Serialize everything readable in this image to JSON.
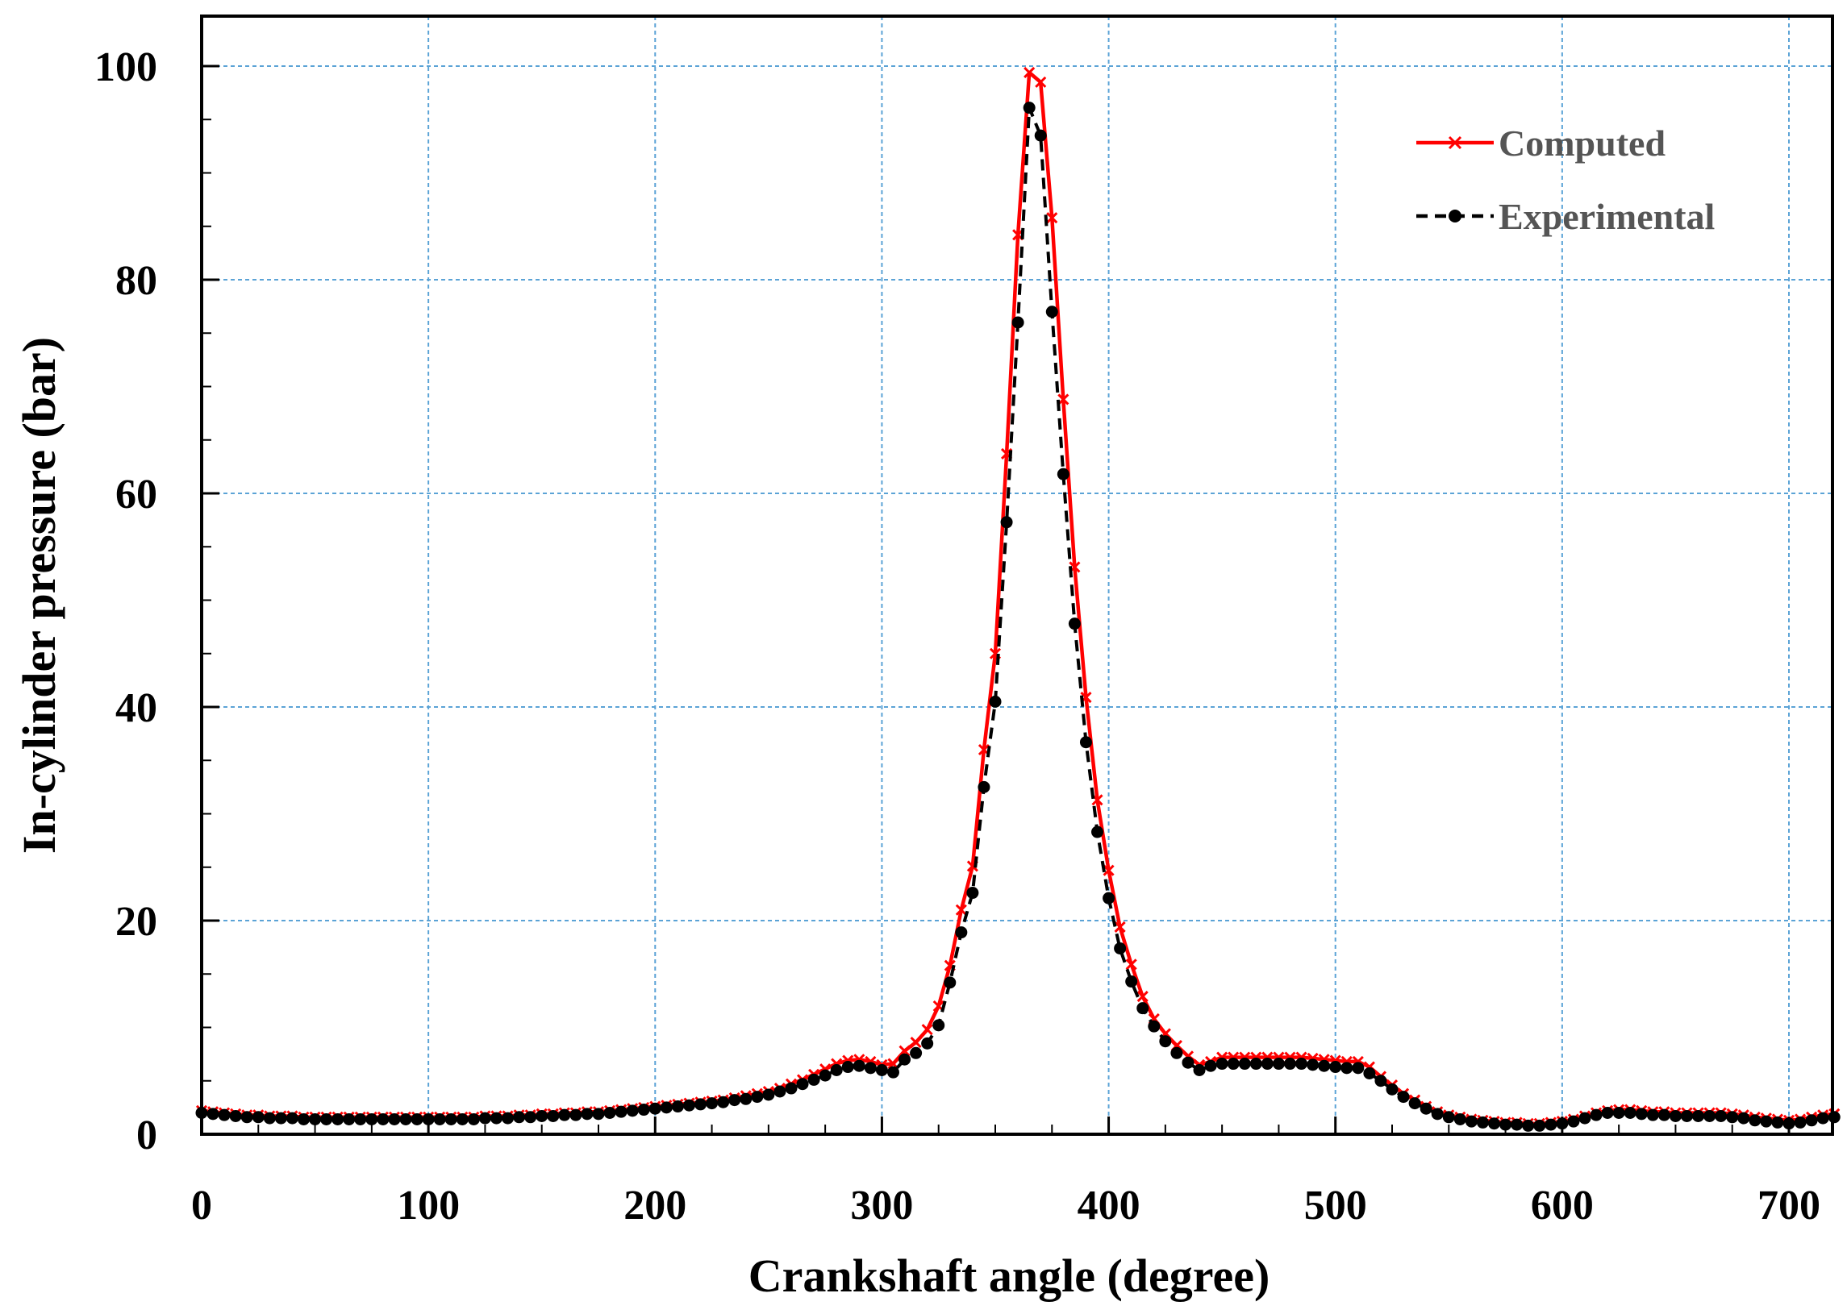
{
  "chart_data": {
    "type": "line",
    "title": "",
    "xlabel": "Crankshaft angle (degree)",
    "ylabel": "In-cylinder pressure (bar)",
    "xlim": [
      0,
      720
    ],
    "ylim": [
      0,
      100
    ],
    "x_ticks": [
      0,
      100,
      200,
      300,
      400,
      500,
      600,
      700
    ],
    "y_ticks": [
      0,
      20,
      40,
      60,
      80,
      100
    ],
    "grid": true,
    "legend_position": "top-right",
    "series": [
      {
        "name": "Computed",
        "color": "#ff0000",
        "marker": "x",
        "line_style": "solid",
        "x": [
          0,
          5,
          10,
          15,
          20,
          25,
          30,
          35,
          40,
          45,
          50,
          55,
          60,
          65,
          70,
          75,
          80,
          85,
          90,
          95,
          100,
          105,
          110,
          115,
          120,
          125,
          130,
          135,
          140,
          145,
          150,
          155,
          160,
          165,
          170,
          175,
          180,
          185,
          190,
          195,
          200,
          205,
          210,
          215,
          220,
          225,
          230,
          235,
          240,
          245,
          250,
          255,
          260,
          265,
          270,
          275,
          280,
          285,
          290,
          295,
          300,
          305,
          310,
          315,
          320,
          325,
          330,
          335,
          340,
          345,
          350,
          355,
          360,
          365,
          370,
          375,
          380,
          385,
          390,
          395,
          400,
          405,
          410,
          415,
          420,
          425,
          430,
          435,
          440,
          445,
          450,
          455,
          460,
          465,
          470,
          475,
          480,
          485,
          490,
          495,
          500,
          505,
          510,
          515,
          520,
          525,
          530,
          535,
          540,
          545,
          550,
          555,
          560,
          565,
          570,
          575,
          580,
          585,
          590,
          595,
          600,
          605,
          610,
          615,
          620,
          625,
          630,
          635,
          640,
          645,
          650,
          655,
          660,
          665,
          670,
          675,
          680,
          685,
          690,
          695,
          700,
          705,
          710,
          715,
          720
        ],
        "y": [
          2.2,
          2.1,
          2.0,
          1.9,
          1.8,
          1.8,
          1.7,
          1.7,
          1.7,
          1.6,
          1.6,
          1.6,
          1.6,
          1.6,
          1.6,
          1.6,
          1.6,
          1.6,
          1.6,
          1.6,
          1.6,
          1.6,
          1.6,
          1.6,
          1.6,
          1.7,
          1.7,
          1.7,
          1.8,
          1.8,
          1.9,
          1.9,
          2.0,
          2.0,
          2.1,
          2.1,
          2.2,
          2.3,
          2.4,
          2.5,
          2.6,
          2.7,
          2.8,
          2.9,
          3.0,
          3.1,
          3.2,
          3.4,
          3.6,
          3.8,
          4.0,
          4.3,
          4.7,
          5.1,
          5.6,
          6.1,
          6.6,
          6.9,
          7.0,
          6.8,
          6.5,
          6.6,
          7.8,
          8.6,
          9.8,
          12.0,
          15.8,
          21.0,
          25.1,
          36.0,
          45.0,
          63.7,
          84.2,
          99.4,
          98.5,
          85.8,
          68.8,
          53.1,
          40.9,
          31.3,
          24.7,
          19.4,
          15.9,
          12.9,
          10.8,
          9.4,
          8.3,
          7.3,
          6.5,
          6.8,
          7.2,
          7.2,
          7.2,
          7.2,
          7.2,
          7.2,
          7.2,
          7.2,
          7.1,
          7.0,
          6.9,
          6.8,
          6.8,
          6.3,
          5.4,
          4.6,
          3.8,
          3.2,
          2.6,
          2.1,
          1.8,
          1.6,
          1.4,
          1.3,
          1.2,
          1.1,
          1.1,
          1.0,
          1.0,
          1.1,
          1.2,
          1.4,
          1.7,
          2.0,
          2.2,
          2.3,
          2.3,
          2.2,
          2.1,
          2.1,
          2.0,
          2.0,
          2.0,
          2.0,
          2.0,
          1.9,
          1.8,
          1.6,
          1.5,
          1.4,
          1.3,
          1.4,
          1.6,
          1.8,
          1.9
        ]
      },
      {
        "name": "Experimental",
        "color": "#000000",
        "marker": "circle",
        "line_style": "dashed",
        "x": [
          0,
          5,
          10,
          15,
          20,
          25,
          30,
          35,
          40,
          45,
          50,
          55,
          60,
          65,
          70,
          75,
          80,
          85,
          90,
          95,
          100,
          105,
          110,
          115,
          120,
          125,
          130,
          135,
          140,
          145,
          150,
          155,
          160,
          165,
          170,
          175,
          180,
          185,
          190,
          195,
          200,
          205,
          210,
          215,
          220,
          225,
          230,
          235,
          240,
          245,
          250,
          255,
          260,
          265,
          270,
          275,
          280,
          285,
          290,
          295,
          300,
          305,
          310,
          315,
          320,
          325,
          330,
          335,
          340,
          345,
          350,
          355,
          360,
          365,
          370,
          375,
          380,
          385,
          390,
          395,
          400,
          405,
          410,
          415,
          420,
          425,
          430,
          435,
          440,
          445,
          450,
          455,
          460,
          465,
          470,
          475,
          480,
          485,
          490,
          495,
          500,
          505,
          510,
          515,
          520,
          525,
          530,
          535,
          540,
          545,
          550,
          555,
          560,
          565,
          570,
          575,
          580,
          585,
          590,
          595,
          600,
          605,
          610,
          615,
          620,
          625,
          630,
          635,
          640,
          645,
          650,
          655,
          660,
          665,
          670,
          675,
          680,
          685,
          690,
          695,
          700,
          705,
          710,
          715,
          720
        ],
        "y": [
          2.0,
          1.9,
          1.8,
          1.7,
          1.6,
          1.6,
          1.5,
          1.5,
          1.5,
          1.4,
          1.4,
          1.4,
          1.4,
          1.4,
          1.4,
          1.4,
          1.4,
          1.4,
          1.4,
          1.4,
          1.4,
          1.4,
          1.4,
          1.4,
          1.4,
          1.5,
          1.5,
          1.5,
          1.6,
          1.6,
          1.7,
          1.7,
          1.8,
          1.8,
          1.9,
          1.9,
          2.0,
          2.1,
          2.2,
          2.3,
          2.4,
          2.5,
          2.6,
          2.7,
          2.8,
          2.9,
          3.0,
          3.2,
          3.3,
          3.5,
          3.7,
          4.0,
          4.3,
          4.7,
          5.1,
          5.5,
          6.0,
          6.3,
          6.4,
          6.2,
          6.0,
          5.8,
          7.0,
          7.6,
          8.5,
          10.2,
          14.2,
          18.9,
          22.6,
          32.5,
          40.5,
          57.3,
          76.0,
          96.1,
          93.5,
          77.0,
          61.8,
          47.8,
          36.7,
          28.3,
          22.1,
          17.4,
          14.3,
          11.8,
          10.1,
          8.7,
          7.6,
          6.7,
          6.0,
          6.4,
          6.6,
          6.6,
          6.6,
          6.6,
          6.6,
          6.6,
          6.6,
          6.6,
          6.5,
          6.4,
          6.3,
          6.2,
          6.2,
          5.7,
          5.0,
          4.2,
          3.5,
          2.9,
          2.4,
          1.9,
          1.6,
          1.4,
          1.2,
          1.1,
          1.0,
          0.9,
          0.9,
          0.8,
          0.8,
          0.9,
          1.0,
          1.2,
          1.5,
          1.8,
          2.0,
          2.0,
          2.0,
          1.9,
          1.8,
          1.8,
          1.7,
          1.7,
          1.7,
          1.7,
          1.7,
          1.6,
          1.5,
          1.3,
          1.2,
          1.1,
          1.0,
          1.1,
          1.3,
          1.5,
          1.6
        ]
      }
    ]
  }
}
